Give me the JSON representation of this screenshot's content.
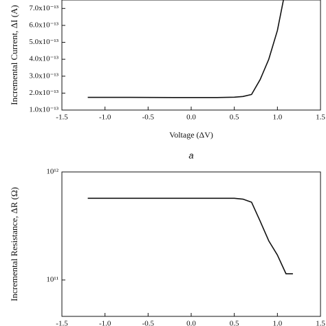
{
  "chart_data": [
    {
      "type": "line",
      "y_label": "Incremental Current, ΔI (A)",
      "x_label": "Voltage (ΔV)",
      "caption": "a",
      "x": [
        -1.2,
        -0.7,
        -0.2,
        0.3,
        0.5,
        0.6,
        0.7,
        0.8,
        0.9,
        1.0,
        1.07
      ],
      "series": [
        {
          "color": "#111111",
          "values": [
            1.75e-13,
            1.75e-13,
            1.74e-13,
            1.74e-13,
            1.76e-13,
            1.8e-13,
            1.92e-13,
            2.8e-13,
            4e-13,
            5.7e-13,
            7.5e-13
          ]
        }
      ],
      "xlim": [
        -1.5,
        1.5
      ],
      "xticks": [
        -1.5,
        {
          "value": -1,
          "label": "-1.0"
        },
        -0.5,
        {
          "value": 0,
          "label": "0.0"
        },
        0.5,
        {
          "value": 1,
          "label": "1.0"
        },
        1.5
      ],
      "ylim": [
        1e-13,
        7.5e-13
      ],
      "yticks": [
        {
          "value": 1e-13,
          "label": "1.0x10⁻¹³"
        },
        {
          "value": 2e-13,
          "label": "2.0x10⁻¹³"
        },
        {
          "value": 3e-13,
          "label": "3.0x10⁻¹³"
        },
        {
          "value": 4e-13,
          "label": "4.0x10⁻¹³"
        },
        {
          "value": 5e-13,
          "label": "5.0x10⁻¹³"
        },
        {
          "value": 6e-13,
          "label": "6.0x10⁻¹³"
        },
        {
          "value": 7e-13,
          "label": "7.0x10⁻¹³"
        }
      ],
      "log_y": false
    },
    {
      "type": "line",
      "y_label": "Incremental Resistance, ΔR (Ω)",
      "x": [
        -1.2,
        -0.7,
        -0.2,
        0.3,
        0.5,
        0.6,
        0.7,
        0.8,
        0.9,
        1.0,
        1.1,
        1.18
      ],
      "series": [
        {
          "color": "#111111",
          "values": [
            570000000000.0,
            570000000000.0,
            570000000000.0,
            570000000000.0,
            570000000000.0,
            560000000000.0,
            525000000000.0,
            350000000000.0,
            230000000000.0,
            170000000000.0,
            114000000000.0,
            114000000000.0
          ]
        }
      ],
      "xlim": [
        -1.5,
        1.5
      ],
      "xticks": [
        -1.5,
        {
          "value": -1,
          "label": "-1.0"
        },
        -0.5,
        {
          "value": 0,
          "label": "0.0"
        },
        0.5,
        {
          "value": 1,
          "label": "1.0"
        },
        1.5
      ],
      "ylim": [
        46000000000.0,
        1000000000000.0
      ],
      "yticks": [
        {
          "value": 100000000000.0,
          "label": "10¹¹"
        },
        {
          "value": 1000000000000.0,
          "label": "10¹²"
        }
      ],
      "log_y": true
    }
  ]
}
